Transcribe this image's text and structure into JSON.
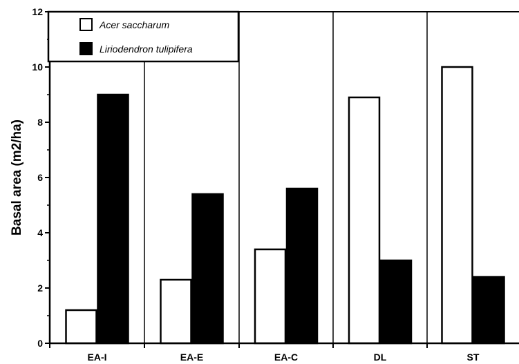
{
  "chart_data": {
    "type": "bar",
    "title": "",
    "xlabel": "",
    "ylabel": "Basal area  (m2/ha)",
    "categories": [
      "EA-I",
      "EA-E",
      "EA-C",
      "DL",
      "ST"
    ],
    "series": [
      {
        "name": "Acer saccharum",
        "values": [
          1.2,
          2.3,
          3.4,
          8.9,
          10.0
        ],
        "color": "#ffffff"
      },
      {
        "name": "Liriodendron tulipifera",
        "values": [
          9.0,
          5.4,
          5.6,
          3.0,
          2.4
        ],
        "color": "#000000"
      }
    ],
    "ylim": [
      0,
      12
    ],
    "yticks": [
      0,
      2,
      4,
      6,
      8,
      10,
      12
    ],
    "grid": false,
    "legend_position": "top-left",
    "panel_dividers": true
  }
}
